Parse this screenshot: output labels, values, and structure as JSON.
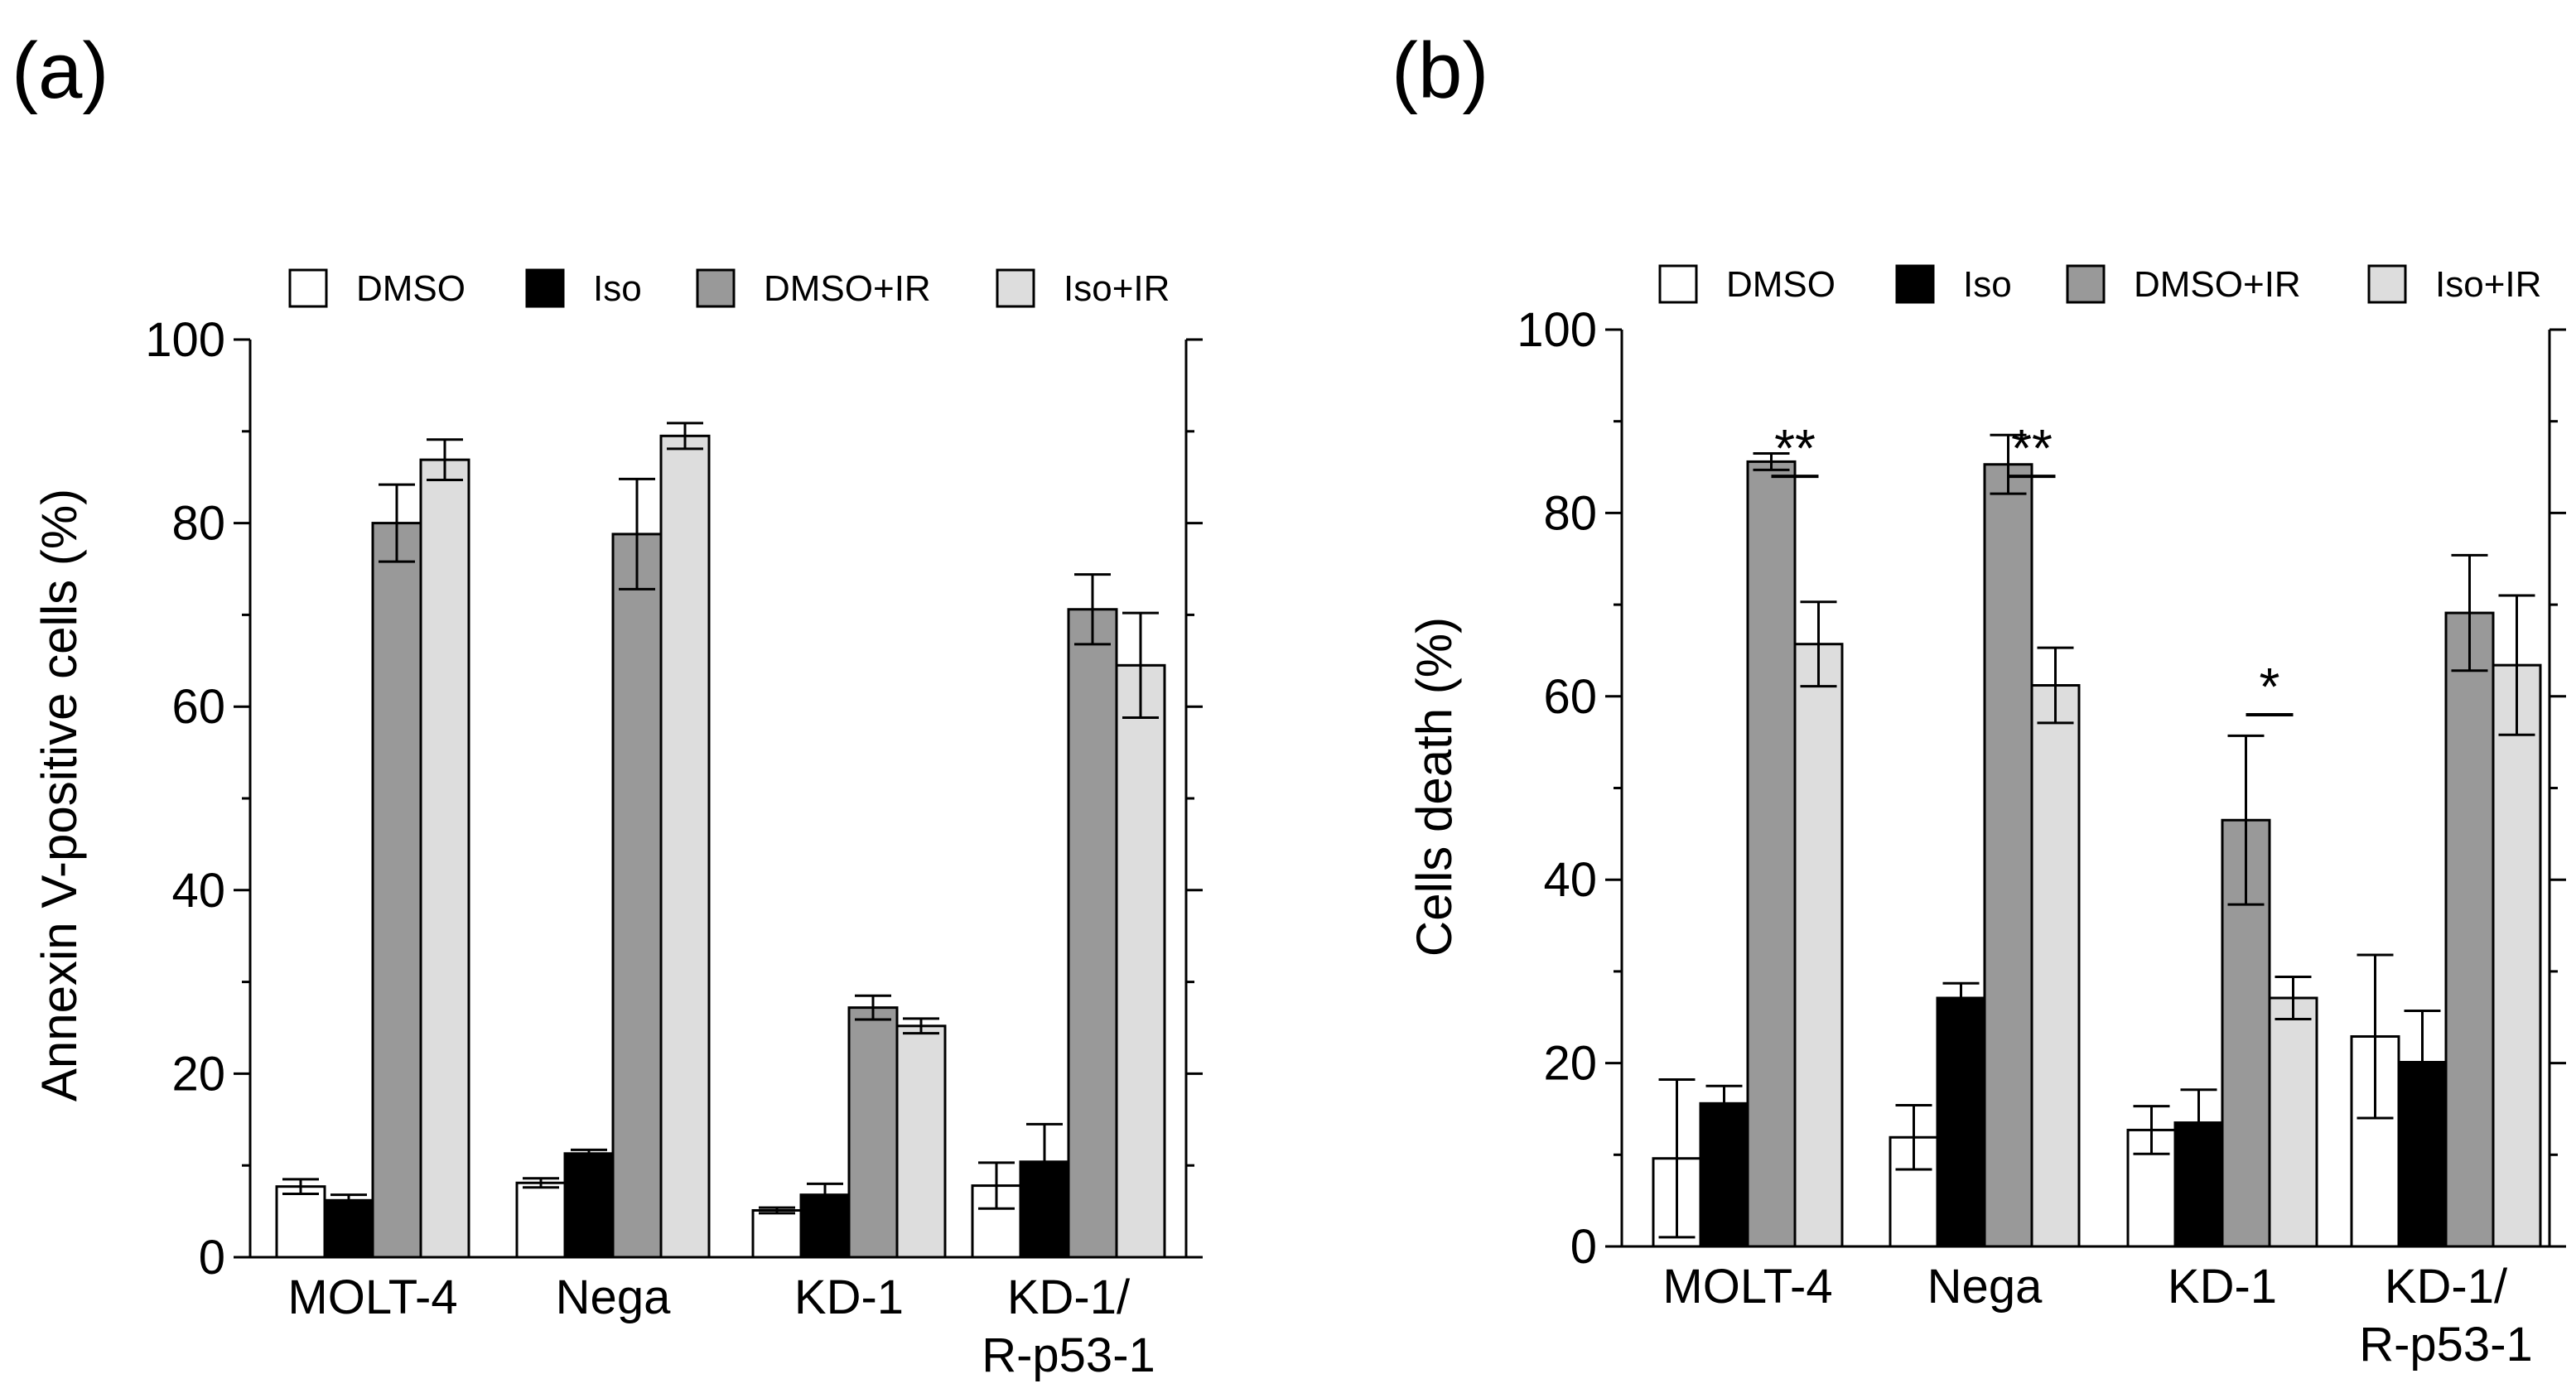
{
  "legend": [
    {
      "label": "DMSO",
      "color": "#ffffff"
    },
    {
      "label": "Iso",
      "color": "#000000"
    },
    {
      "label": "DMSO+IR",
      "color": "#999999"
    },
    {
      "label": "Iso+IR",
      "color": "#dddddd"
    }
  ],
  "chart_data": [
    {
      "type": "bar",
      "panel_label": "(a)",
      "ylabel": "Annexin V-positive cells (%)",
      "ylim": [
        0,
        100
      ],
      "yticks": [
        0,
        20,
        40,
        60,
        80,
        100
      ],
      "categories": [
        [
          "MOLT-4"
        ],
        [
          "Nega"
        ],
        [
          "KD-1"
        ],
        [
          "KD-1/",
          "R-p53-1"
        ]
      ],
      "series": [
        {
          "name": "DMSO",
          "values": [
            7.7,
            8.1,
            5.1,
            7.8
          ],
          "errors": [
            0.8,
            0.5,
            0.3,
            2.5
          ]
        },
        {
          "name": "Iso",
          "values": [
            6.2,
            11.3,
            6.8,
            10.4
          ],
          "errors": [
            0.6,
            0.4,
            1.2,
            4.1
          ]
        },
        {
          "name": "DMSO+IR",
          "values": [
            80.0,
            78.8,
            27.2,
            70.6
          ],
          "errors": [
            4.2,
            6.0,
            1.3,
            3.8
          ]
        },
        {
          "name": "Iso+IR",
          "values": [
            86.9,
            89.5,
            25.2,
            64.5
          ],
          "errors": [
            2.2,
            1.4,
            0.8,
            5.7
          ]
        }
      ],
      "annotations": []
    },
    {
      "type": "bar",
      "panel_label": "(b)",
      "ylabel": "Cells death (%)",
      "ylim": [
        0,
        100
      ],
      "yticks": [
        0,
        20,
        40,
        60,
        80,
        100
      ],
      "categories": [
        [
          "MOLT-4"
        ],
        [
          "Nega"
        ],
        [
          "KD-1"
        ],
        [
          "KD-1/",
          "R-p53-1"
        ]
      ],
      "series": [
        {
          "name": "DMSO",
          "values": [
            9.6,
            11.9,
            12.7,
            22.9
          ],
          "errors": [
            8.6,
            3.5,
            2.6,
            8.9
          ]
        },
        {
          "name": "Iso",
          "values": [
            15.6,
            27.1,
            13.5,
            20.1
          ],
          "errors": [
            1.9,
            1.6,
            3.6,
            5.6
          ]
        },
        {
          "name": "DMSO+IR",
          "values": [
            85.6,
            85.3,
            46.5,
            69.1
          ],
          "errors": [
            0.9,
            3.2,
            9.2,
            6.3
          ]
        },
        {
          "name": "Iso+IR",
          "values": [
            65.7,
            61.2,
            27.1,
            63.4
          ],
          "errors": [
            4.6,
            4.1,
            2.3,
            7.6
          ]
        }
      ],
      "annotations": [
        {
          "text": "**",
          "category": 0,
          "between": [
            2,
            3
          ],
          "y": 84
        },
        {
          "text": "**",
          "category": 1,
          "between": [
            2,
            3
          ],
          "y": 84
        },
        {
          "text": "*",
          "category": 2,
          "between": [
            2,
            3
          ],
          "y": 58
        }
      ]
    }
  ]
}
